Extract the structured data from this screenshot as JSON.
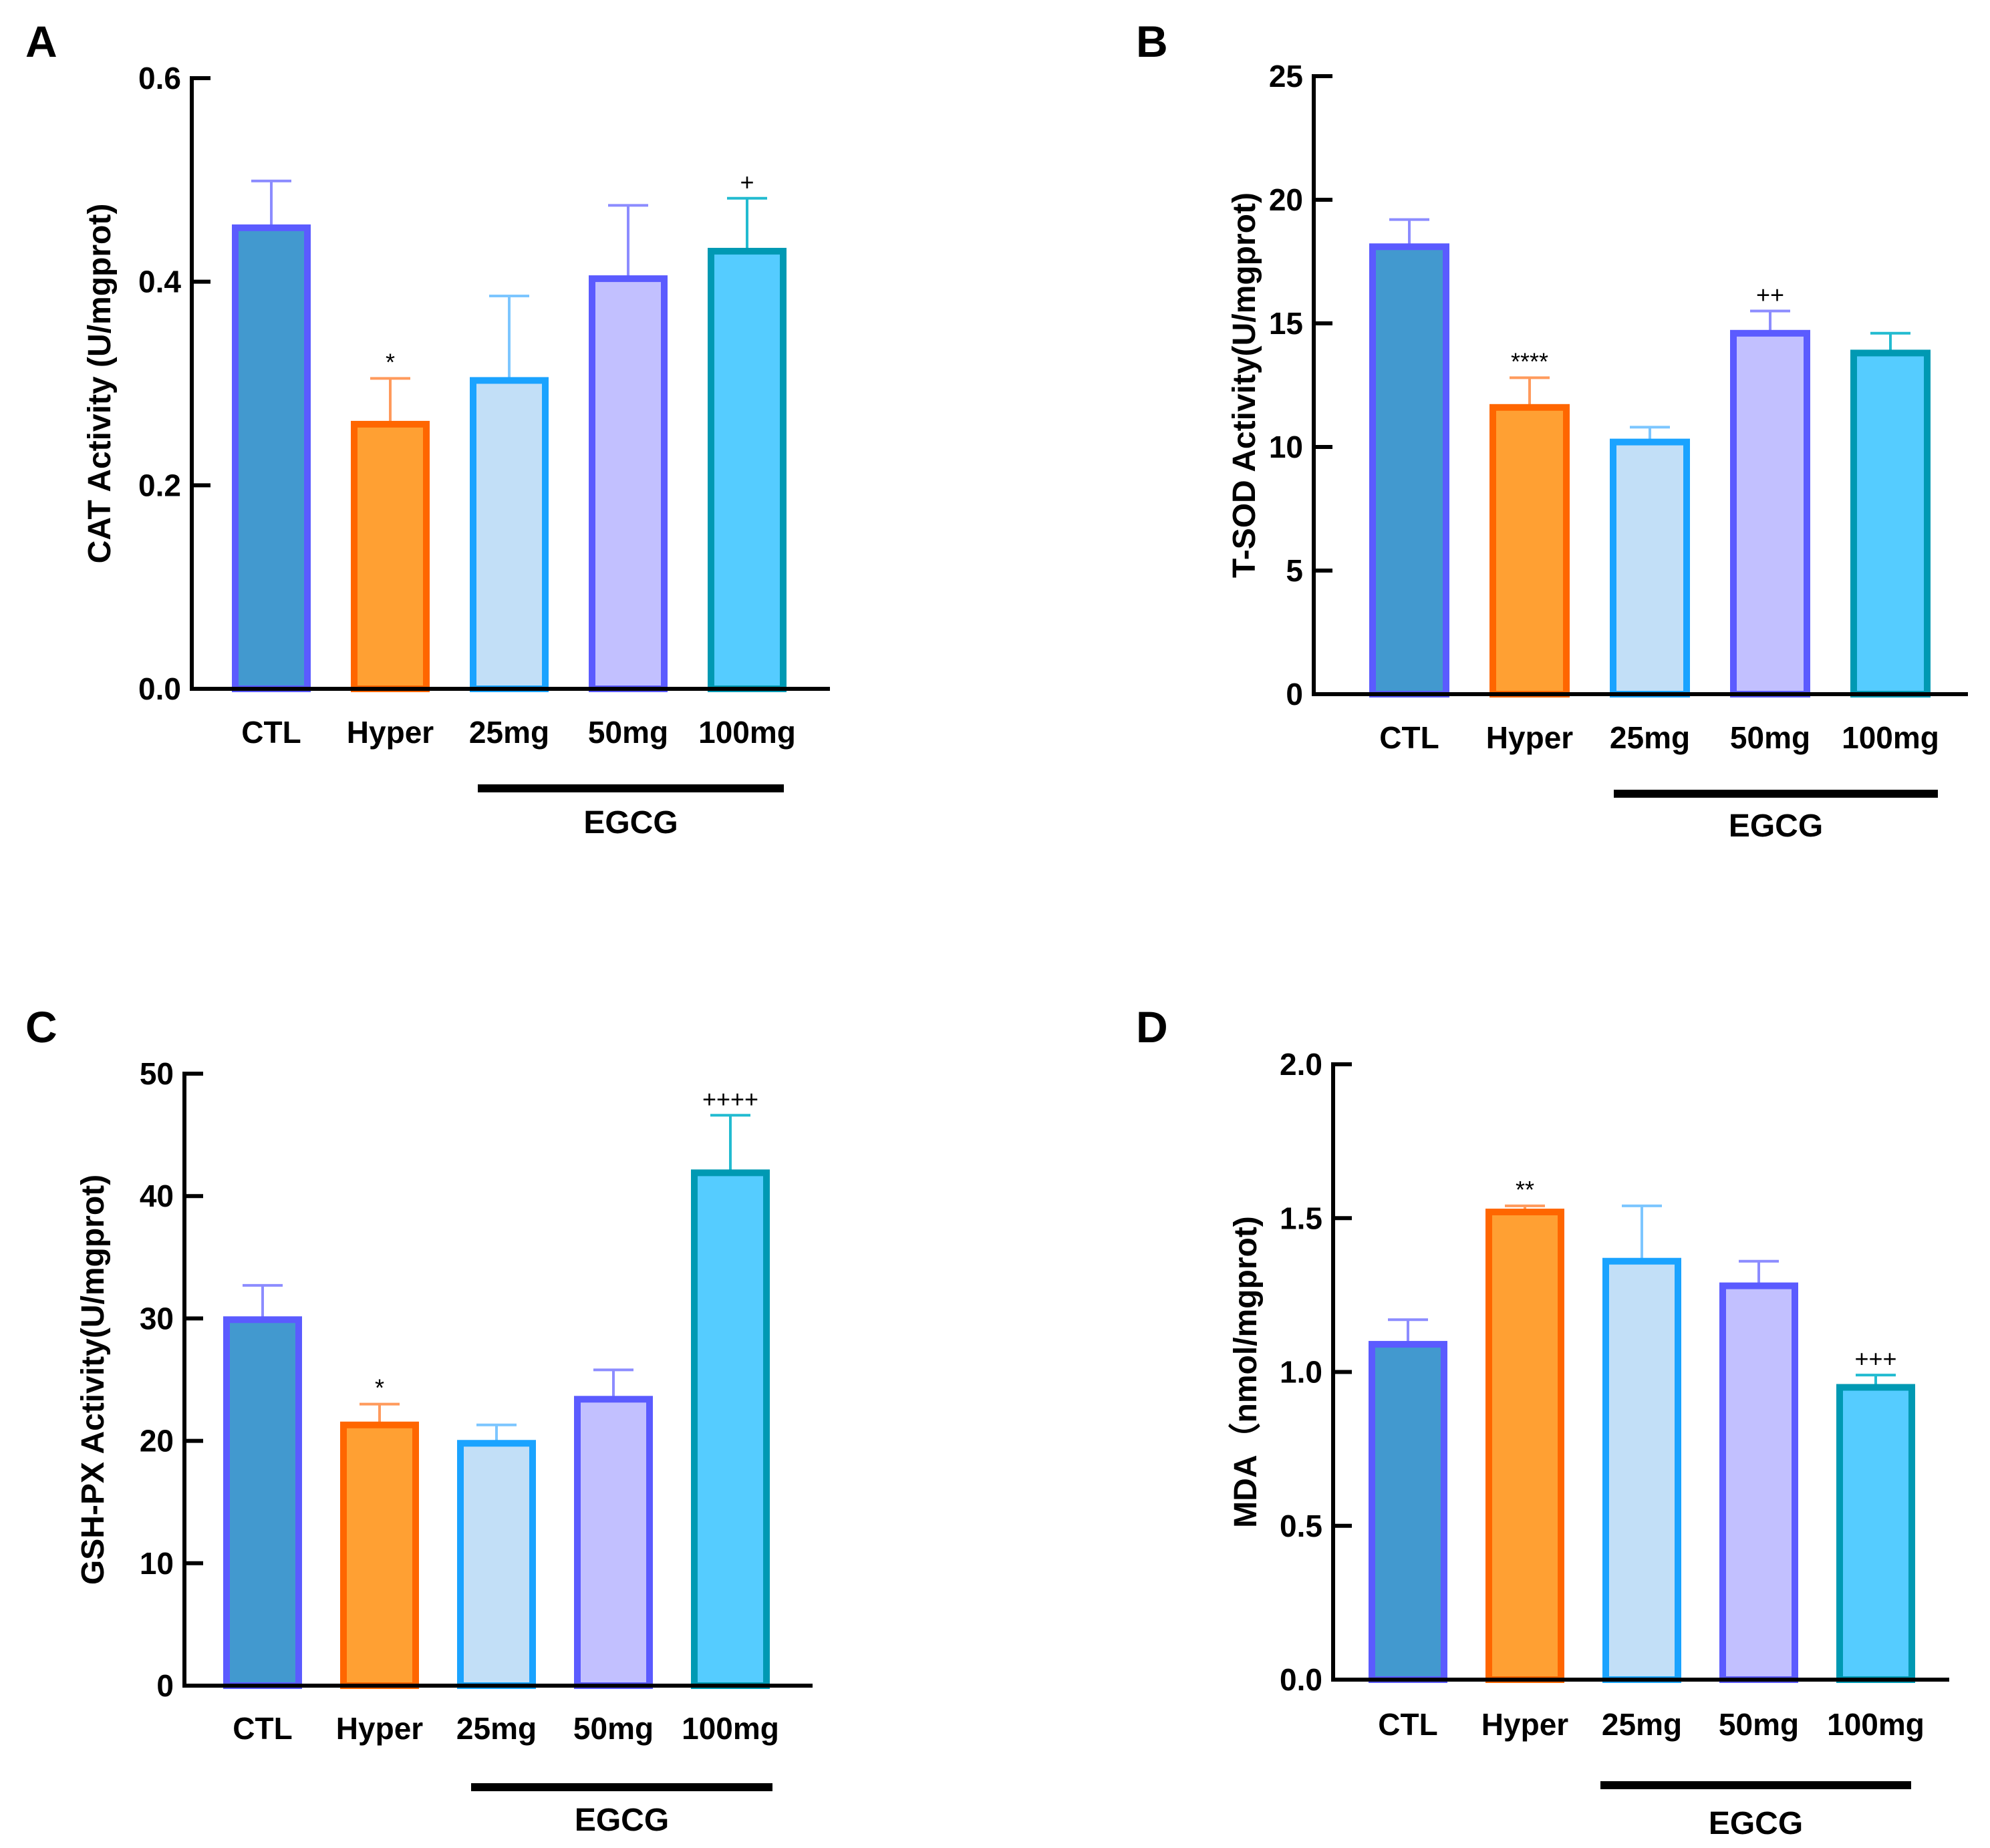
{
  "colors": {
    "CTL": {
      "fill": "#4299CF",
      "stroke": "#5B5BFF",
      "err": "#8C8CFF"
    },
    "Hyper": {
      "fill": "#FFA033",
      "stroke": "#FF6600",
      "err": "#FF9A5C"
    },
    "25mg": {
      "fill": "#C2DFF7",
      "stroke": "#1AA3FF",
      "err": "#7CC6FF"
    },
    "50mg": {
      "fill": "#C2C0FF",
      "stroke": "#5B5BFF",
      "err": "#8C8CFF"
    },
    "100mg": {
      "fill": "#55CCFF",
      "stroke": "#0099B3",
      "err": "#22BBD0"
    }
  },
  "chart_data": [
    {
      "panel": "A",
      "type": "bar",
      "categories": [
        "CTL",
        "Hyper",
        "25mg",
        "50mg",
        "100mg"
      ],
      "values": [
        0.453,
        0.26,
        0.303,
        0.403,
        0.43
      ],
      "errors": [
        0.046,
        0.045,
        0.083,
        0.072,
        0.052
      ],
      "significance": [
        "",
        "*",
        "",
        "",
        "+"
      ],
      "ylabel": "CAT Activity (U/mgprot)",
      "ylim": [
        0,
        0.6
      ],
      "yticks": [
        "0.0",
        "0.2",
        "0.4",
        "0.6"
      ],
      "ytick_values": [
        0,
        0.2,
        0.4,
        0.6
      ],
      "group_label": "EGCG"
    },
    {
      "panel": "B",
      "type": "bar",
      "categories": [
        "CTL",
        "Hyper",
        "25mg",
        "50mg",
        "100mg"
      ],
      "values": [
        18.1,
        11.6,
        10.2,
        14.6,
        13.8
      ],
      "errors": [
        1.1,
        1.2,
        0.6,
        0.9,
        0.8
      ],
      "significance": [
        "",
        "****",
        "",
        "++",
        ""
      ],
      "ylabel": "T-SOD Activity(U/mgprot)",
      "ylim": [
        0,
        25
      ],
      "yticks": [
        "0",
        "5",
        "10",
        "15",
        "20",
        "25"
      ],
      "ytick_values": [
        0,
        5,
        10,
        15,
        20,
        25
      ],
      "group_label": "EGCG"
    },
    {
      "panel": "C",
      "type": "bar",
      "categories": [
        "CTL",
        "Hyper",
        "25mg",
        "50mg",
        "100mg"
      ],
      "values": [
        29.9,
        21.3,
        19.8,
        23.4,
        41.9
      ],
      "errors": [
        2.8,
        1.7,
        1.5,
        2.4,
        4.7
      ],
      "significance": [
        "",
        "*",
        "",
        "",
        "++++"
      ],
      "ylabel": "GSH-PX Activity(U/mgprot)",
      "ylim": [
        0,
        50
      ],
      "yticks": [
        "0",
        "10",
        "20",
        "30",
        "40",
        "50"
      ],
      "ytick_values": [
        0,
        10,
        20,
        30,
        40,
        50
      ],
      "group_label": "EGCG"
    },
    {
      "panel": "D",
      "type": "bar",
      "categories": [
        "CTL",
        "Hyper",
        "25mg",
        "50mg",
        "100mg"
      ],
      "values": [
        1.09,
        1.52,
        1.36,
        1.28,
        0.95
      ],
      "errors": [
        0.08,
        0.02,
        0.18,
        0.08,
        0.04
      ],
      "significance": [
        "",
        "**",
        "",
        "",
        "+++"
      ],
      "ylabel": "MDA（nmol/mgprot)",
      "ylim": [
        0,
        2.0
      ],
      "yticks": [
        "0.0",
        "0.5",
        "1.0",
        "1.5",
        "2.0"
      ],
      "ytick_values": [
        0,
        0.5,
        1.0,
        1.5,
        2.0
      ],
      "group_label": "EGCG"
    }
  ]
}
